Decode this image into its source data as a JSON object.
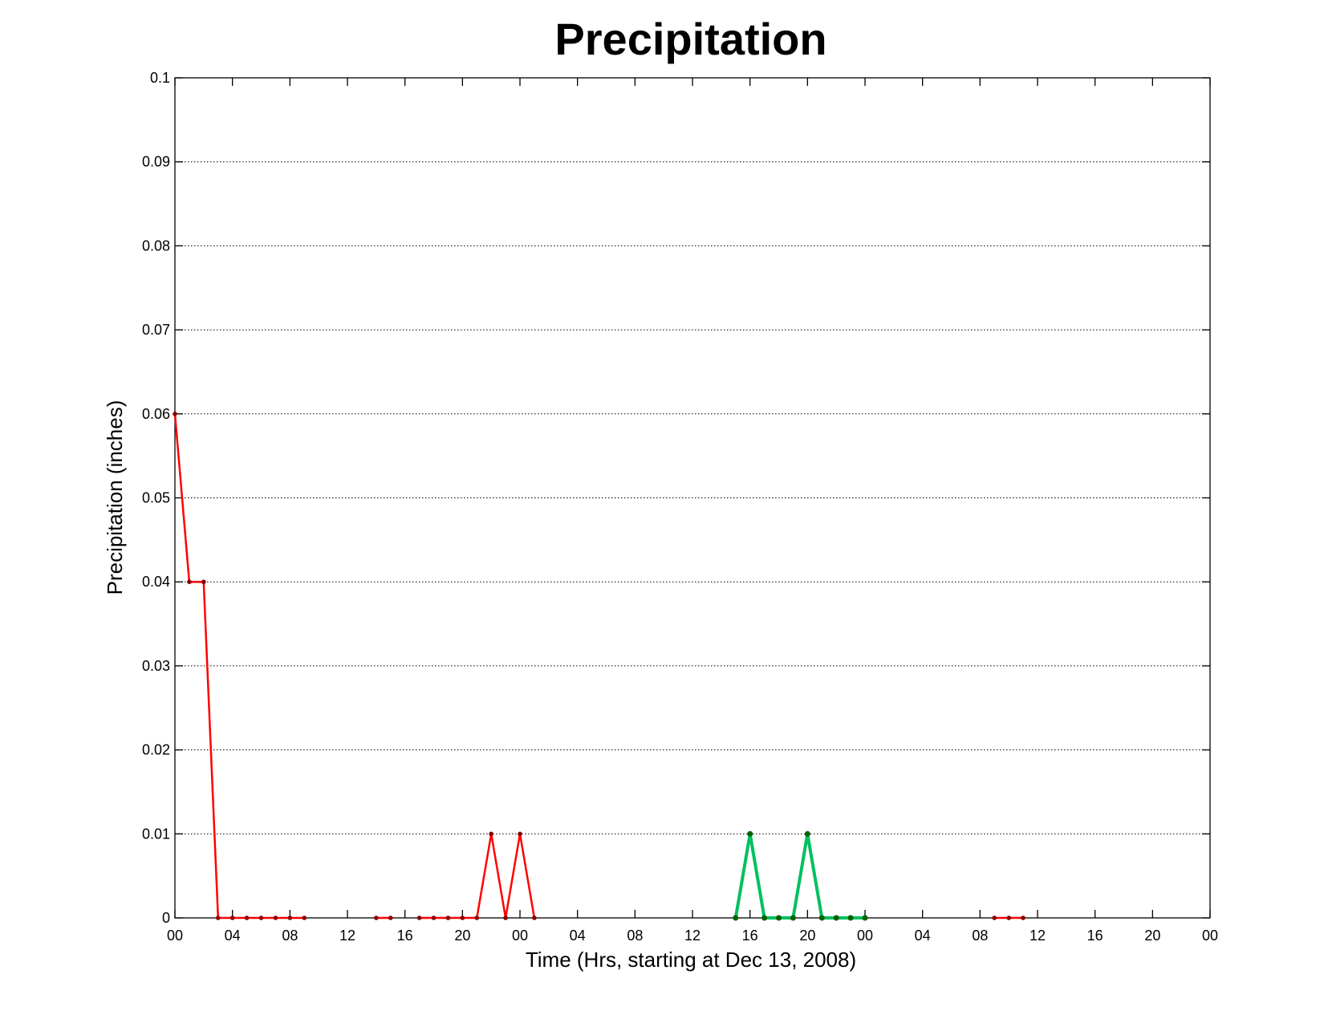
{
  "chart_data": {
    "type": "line",
    "title": "Precipitation",
    "xlabel": "Time (Hrs, starting at Dec 13, 2008)",
    "ylabel": "Precipitation (inches)",
    "xlim": [
      0,
      72
    ],
    "ylim": [
      0,
      0.1
    ],
    "grid": true,
    "x_tick_values": [
      0,
      4,
      8,
      12,
      16,
      20,
      24,
      28,
      32,
      36,
      40,
      44,
      48,
      52,
      56,
      60,
      64,
      68,
      72
    ],
    "x_tick_labels": [
      "00",
      "04",
      "08",
      "12",
      "16",
      "20",
      "00",
      "04",
      "08",
      "12",
      "16",
      "20",
      "00",
      "04",
      "08",
      "12",
      "16",
      "20",
      "00"
    ],
    "y_tick_values": [
      0,
      0.01,
      0.02,
      0.03,
      0.04,
      0.05,
      0.06,
      0.07,
      0.08,
      0.09,
      0.1
    ],
    "y_tick_labels": [
      "0",
      "0.01",
      "0.02",
      "0.03",
      "0.04",
      "0.05",
      "0.06",
      "0.07",
      "0.08",
      "0.09",
      "0.1"
    ],
    "series": [
      {
        "color": "#ff0000",
        "marker_color": "#8b0000",
        "line_width": 2.5,
        "segments": [
          [
            [
              0,
              0.06
            ],
            [
              1,
              0.04
            ],
            [
              2,
              0.04
            ],
            [
              3,
              0
            ],
            [
              4,
              0
            ],
            [
              5,
              0
            ],
            [
              6,
              0
            ],
            [
              7,
              0
            ],
            [
              8,
              0
            ],
            [
              9,
              0
            ]
          ],
          [
            [
              14,
              0
            ],
            [
              15,
              0
            ]
          ],
          [
            [
              17,
              0
            ],
            [
              18,
              0
            ],
            [
              19,
              0
            ],
            [
              20,
              0
            ],
            [
              21,
              0
            ],
            [
              22,
              0.01
            ],
            [
              23,
              0
            ],
            [
              24,
              0.01
            ],
            [
              25,
              0
            ]
          ],
          [
            [
              57,
              0
            ],
            [
              58,
              0
            ],
            [
              59,
              0
            ]
          ]
        ]
      },
      {
        "color": "#00c060",
        "marker_color": "#006400",
        "line_width": 4,
        "segments": [
          [
            [
              39,
              0
            ],
            [
              40,
              0.01
            ],
            [
              41,
              0
            ],
            [
              42,
              0
            ],
            [
              43,
              0
            ],
            [
              44,
              0.01
            ],
            [
              45,
              0
            ],
            [
              46,
              0
            ],
            [
              47,
              0
            ],
            [
              48,
              0
            ]
          ]
        ]
      }
    ]
  }
}
